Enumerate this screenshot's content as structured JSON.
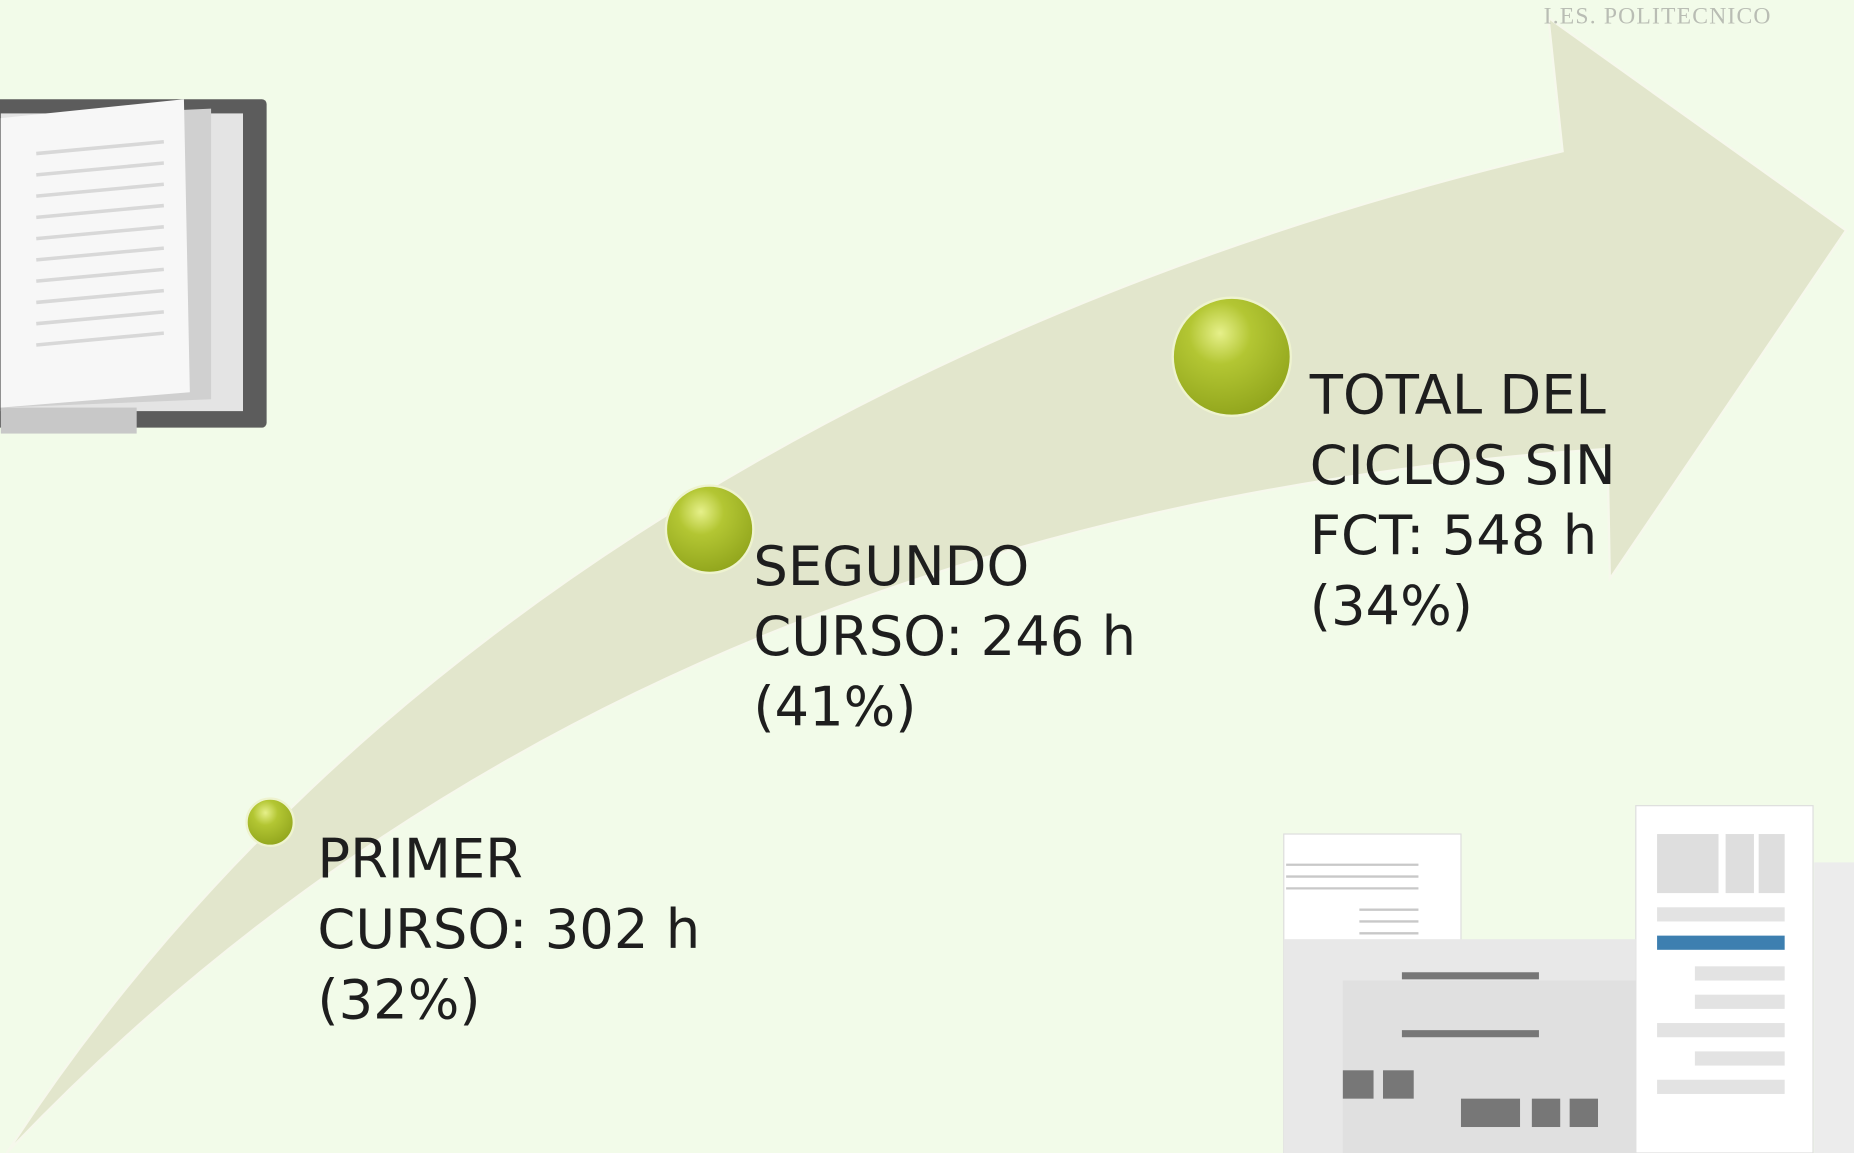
{
  "watermark": "I.ES. POLITECNICO",
  "nodes": [
    {
      "lines": [
        "PRIMER",
        "CURSO: 302 h",
        "(32%)"
      ]
    },
    {
      "lines": [
        "SEGUNDO",
        "CURSO: 246 h",
        "(41%)"
      ]
    },
    {
      "lines": [
        "TOTAL DEL",
        "CICLOS SIN",
        "FCT: 548 h",
        "(34%)"
      ]
    }
  ]
}
